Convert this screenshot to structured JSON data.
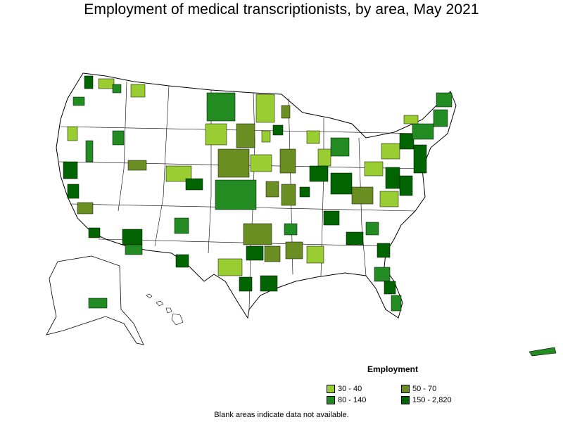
{
  "title": "Employment of medical transcriptionists, by area, May 2021",
  "legend": {
    "title": "Employment",
    "items": [
      {
        "label": "30 - 40",
        "color": "#9acd32"
      },
      {
        "label": "50 - 70",
        "color": "#6b8e23"
      },
      {
        "label": "80 - 140",
        "color": "#228b22"
      },
      {
        "label": "150 - 2,820",
        "color": "#006400"
      }
    ]
  },
  "footnote": "Blank areas indicate data not available."
}
